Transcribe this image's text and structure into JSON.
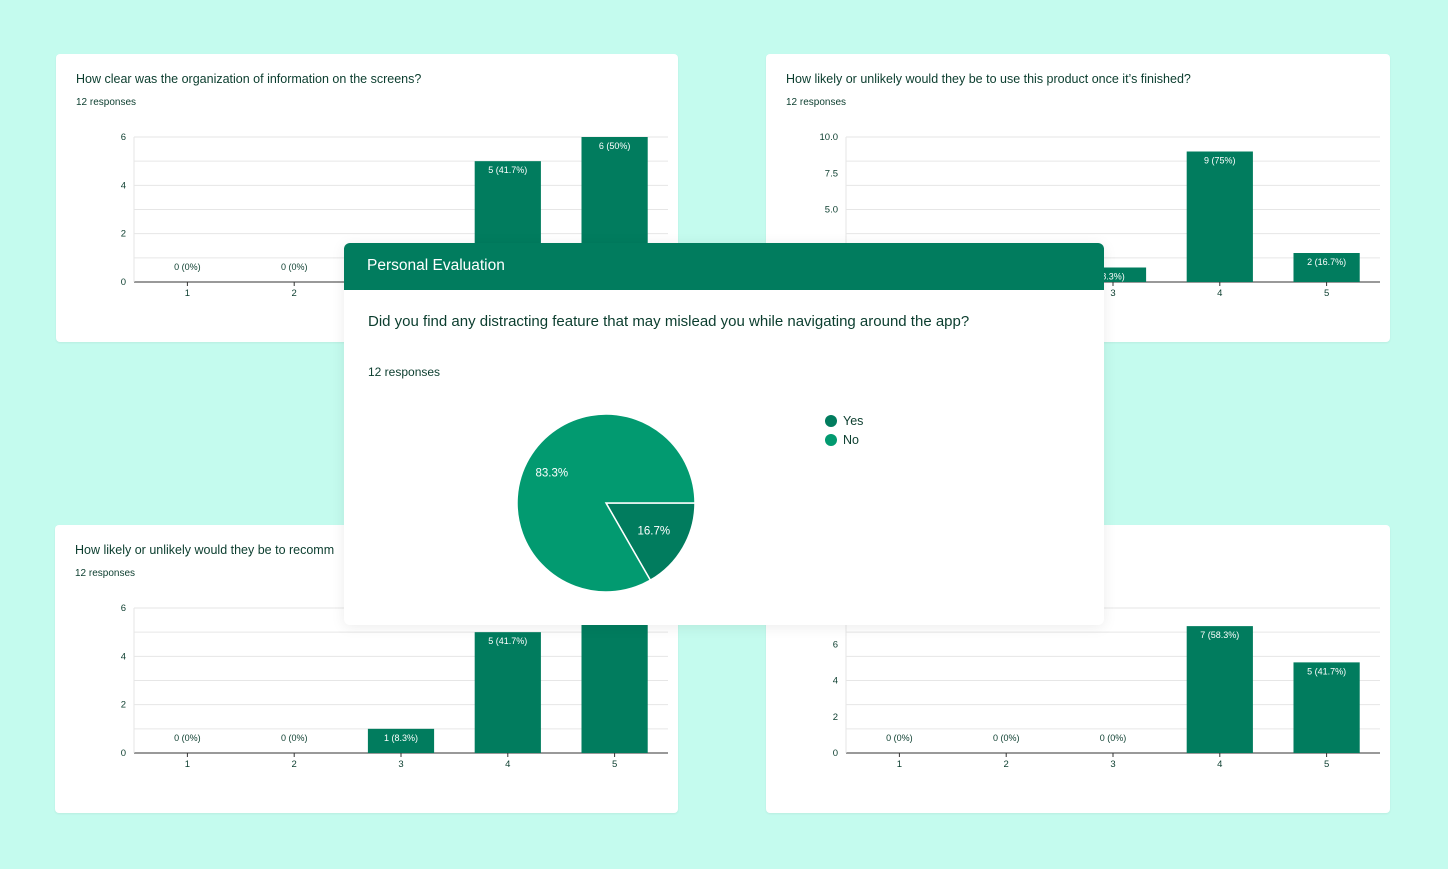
{
  "colors": {
    "background": "#c4fbee",
    "bar": "#017c5e",
    "pie_main": "#029a70",
    "header": "#017c5e",
    "text": "#0b3d2e",
    "grid": "#e6e6e6"
  },
  "cards": [
    {
      "question": "How clear was the organization of information on the screens?",
      "responses": "12 responses"
    },
    {
      "question": "How likely or unlikely would they be to use this product once it’s finished?",
      "responses": "12 responses"
    },
    {
      "question": "How likely or unlikely would they be to recomm",
      "responses": "12 responses"
    },
    {
      "question": "",
      "responses": ""
    }
  ],
  "modal": {
    "header": "Personal Evaluation",
    "question": "Did you find any distracting feature that may mislead you while navigating around the app?",
    "responses": "12 responses",
    "legend": [
      "Yes",
      "No"
    ]
  },
  "chart_data": [
    {
      "type": "bar",
      "categories": [
        "1",
        "2",
        "3",
        "4",
        "5"
      ],
      "values": [
        0,
        0,
        null,
        5,
        6
      ],
      "data_labels": [
        "0 (0%)",
        "0 (0%)",
        "",
        "5 (41.7%)",
        "6 (50%)"
      ],
      "yticks": [
        "0",
        "2",
        "4",
        "6"
      ],
      "ylim": [
        0,
        6
      ]
    },
    {
      "type": "bar",
      "categories": [
        "1",
        "2",
        "3",
        "4",
        "5"
      ],
      "values": [
        null,
        null,
        1,
        9,
        2
      ],
      "data_labels": [
        "",
        "",
        "8.3%)",
        "9 (75%)",
        "2 (16.7%)"
      ],
      "yticks": [
        "10.0",
        "7.5",
        "5.0"
      ],
      "ylim": [
        0,
        10
      ]
    },
    {
      "type": "bar",
      "categories": [
        "1",
        "2",
        "3",
        "4",
        "5"
      ],
      "values": [
        0,
        0,
        1,
        5,
        6
      ],
      "data_labels": [
        "0 (0%)",
        "0 (0%)",
        "1 (8.3%)",
        "5 (41.7%)",
        ""
      ],
      "yticks": [
        "0",
        "2",
        "4",
        "6"
      ],
      "ylim": [
        0,
        6
      ]
    },
    {
      "type": "bar",
      "categories": [
        "1",
        "2",
        "3",
        "4",
        "5"
      ],
      "values": [
        0,
        0,
        0,
        7,
        5
      ],
      "data_labels": [
        "0 (0%)",
        "0 (0%)",
        "0 (0%)",
        "7 (58.3%)",
        "5 (41.7%)"
      ],
      "yticks": [
        "0",
        "2",
        "4",
        "6"
      ],
      "ylim": [
        0,
        8
      ]
    },
    {
      "type": "pie",
      "categories": [
        "Yes",
        "No"
      ],
      "values": [
        16.7,
        83.3
      ],
      "data_labels": [
        "16.7%",
        "83.3%"
      ]
    }
  ]
}
